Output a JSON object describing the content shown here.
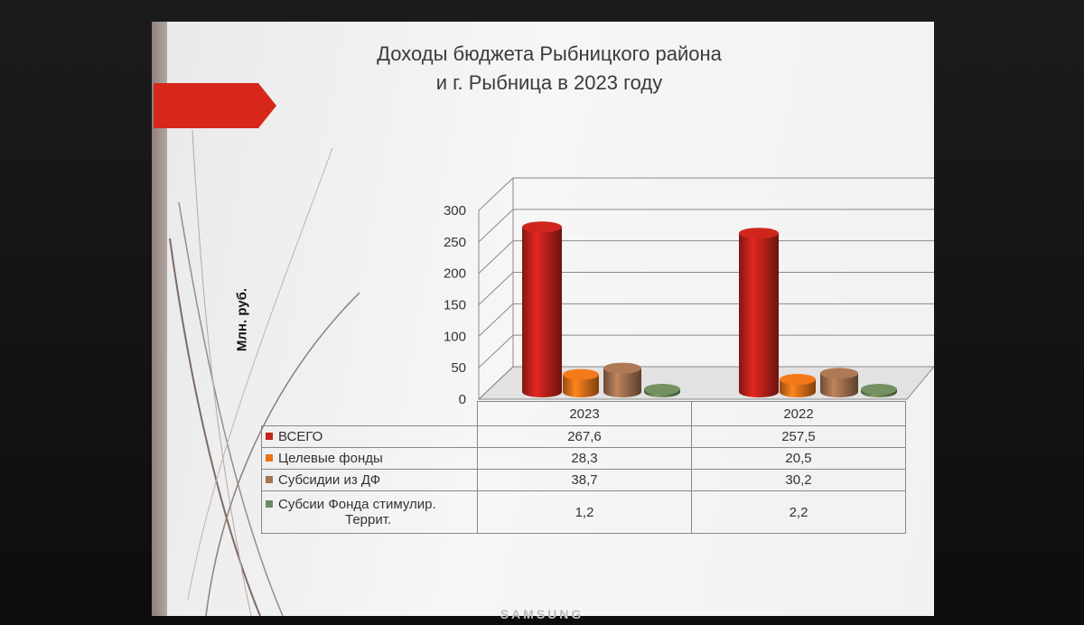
{
  "monitor": {
    "brand": "SAMSUNG"
  },
  "slide": {
    "title_line1": "Доходы бюджета Рыбницкого района",
    "title_line2": "и г. Рыбница в 2023 году"
  },
  "chart_data": {
    "type": "bar",
    "title": "Доходы бюджета Рыбницкого района и г. Рыбница в 2023 году",
    "ylabel": "Млн. руб.",
    "ylim": [
      0,
      300
    ],
    "yticks": [
      "300",
      "250",
      "200",
      "150",
      "100",
      "50",
      "0"
    ],
    "categories": [
      "2023",
      "2022"
    ],
    "series": [
      {
        "name": "ВСЕГО",
        "color": "#c5231c",
        "values": [
          267.6,
          257.5
        ],
        "labels": [
          "267,6",
          "257,5"
        ]
      },
      {
        "name": "Целевые фонды",
        "color": "#e8731a",
        "values": [
          28.3,
          20.5
        ],
        "labels": [
          "28,3",
          "20,5"
        ]
      },
      {
        "name": "Субсидии из ДФ",
        "color": "#a67451",
        "values": [
          38.7,
          30.2
        ],
        "labels": [
          "38,7",
          "30,2"
        ]
      },
      {
        "name_line1": "Субсии Фонда стимулир.",
        "name_line2": "Террит.",
        "color": "#6f8a5c",
        "values": [
          1.2,
          2.2
        ],
        "labels": [
          "1,2",
          "2,2"
        ]
      }
    ],
    "grid": true,
    "legend": "table-below"
  }
}
